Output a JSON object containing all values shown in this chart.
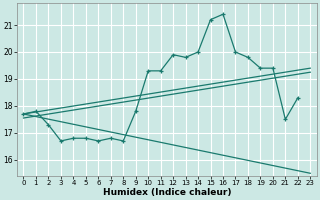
{
  "xlabel": "Humidex (Indice chaleur)",
  "x_ticks": [
    0,
    1,
    2,
    3,
    4,
    5,
    6,
    7,
    8,
    9,
    10,
    11,
    12,
    13,
    14,
    15,
    16,
    17,
    18,
    19,
    20,
    21,
    22,
    23
  ],
  "y_ticks": [
    16,
    17,
    18,
    19,
    20,
    21
  ],
  "ylim": [
    15.4,
    21.8
  ],
  "xlim": [
    -0.5,
    23.5
  ],
  "bg_color": "#cce8e4",
  "grid_color": "#ffffff",
  "line_color": "#1a7a6e",
  "series1_x": [
    0,
    1,
    2,
    3,
    4,
    5,
    6,
    7,
    8,
    9,
    10,
    11,
    12,
    13,
    14,
    15,
    16,
    17,
    18,
    19,
    20,
    21,
    22
  ],
  "series1_y": [
    17.7,
    17.8,
    17.3,
    16.7,
    16.8,
    16.8,
    16.7,
    16.8,
    16.7,
    17.8,
    19.3,
    19.3,
    19.9,
    19.8,
    20.0,
    21.2,
    21.4,
    20.0,
    19.8,
    19.4,
    19.4,
    17.5,
    18.3
  ],
  "series2_x": [
    0,
    23
  ],
  "series2_y": [
    17.7,
    19.4
  ],
  "series3_x": [
    0,
    23
  ],
  "series3_y": [
    17.55,
    19.25
  ],
  "series4_x": [
    0,
    23
  ],
  "series4_y": [
    17.7,
    15.5
  ]
}
